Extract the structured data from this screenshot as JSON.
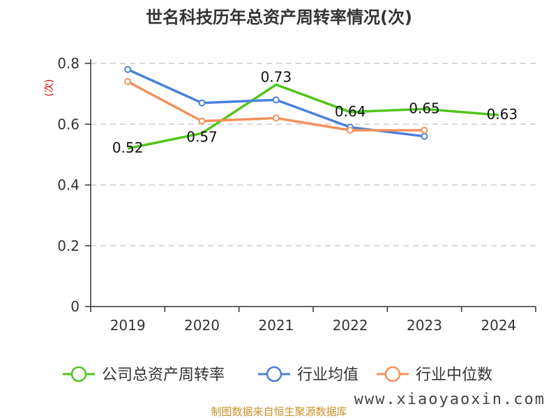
{
  "chart_data": {
    "type": "line",
    "title": "世名科技历年总资产周转率情况(次)",
    "ylabel": "(次)",
    "xlabel": "",
    "categories": [
      "2019",
      "2020",
      "2021",
      "2022",
      "2023",
      "2024"
    ],
    "ylim": [
      0,
      0.8
    ],
    "yticks": [
      0,
      0.2,
      0.4,
      0.6,
      0.8
    ],
    "ytick_labels": [
      "0",
      "0.2",
      "0.4",
      "0.6",
      "0.8"
    ],
    "grid": true,
    "legend_position": "bottom",
    "series": [
      {
        "name": "公司总资产周转率",
        "color": "#52c41a",
        "values": [
          0.52,
          0.57,
          0.73,
          0.64,
          0.65,
          0.63
        ],
        "labels": [
          "0.52",
          "0.57",
          "0.73",
          "0.64",
          "0.65",
          "0.63"
        ],
        "show_markers": false
      },
      {
        "name": "行业均值",
        "color": "#4a7fdc",
        "values": [
          0.78,
          0.67,
          0.68,
          0.59,
          0.56,
          null
        ],
        "show_markers": true
      },
      {
        "name": "行业中位数",
        "color": "#f5905a",
        "values": [
          0.74,
          0.61,
          0.62,
          0.58,
          0.58,
          null
        ],
        "show_markers": true
      }
    ]
  },
  "colors": {
    "axis": "#333333",
    "grid": "#cccccc",
    "unit_label": "#e00000",
    "source_text": "#c8902a"
  },
  "source": "制图数据来自恒生聚源数据库",
  "watermark": "www.xiaoyaoxin.com"
}
